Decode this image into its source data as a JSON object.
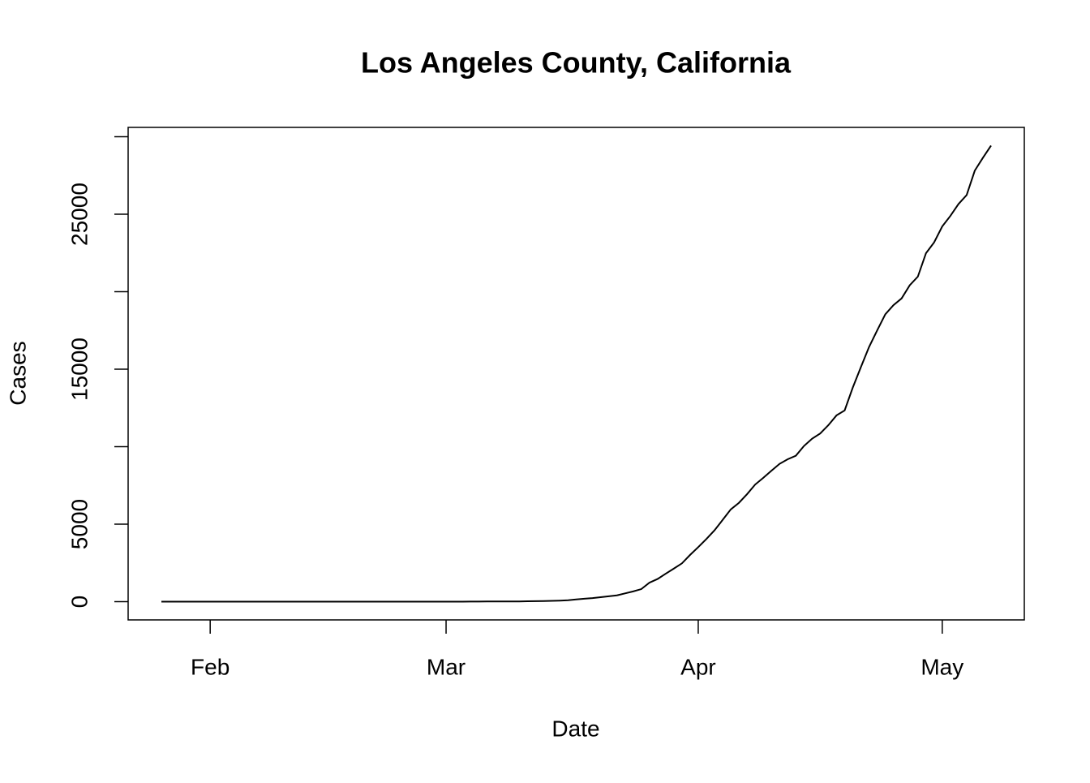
{
  "chart_data": {
    "type": "line",
    "title": "Los Angeles County, California",
    "x_label": "Date",
    "y_label": "Cases",
    "categories": [
      null,
      null,
      null,
      null,
      null,
      null,
      "Feb",
      null,
      null,
      null,
      null,
      null,
      null,
      null,
      null,
      null,
      null,
      null,
      null,
      null,
      null,
      null,
      null,
      null,
      null,
      null,
      null,
      null,
      null,
      null,
      null,
      null,
      null,
      null,
      null,
      "Mar",
      null,
      null,
      null,
      null,
      null,
      null,
      null,
      null,
      null,
      null,
      null,
      null,
      null,
      null,
      null,
      null,
      null,
      null,
      null,
      null,
      null,
      null,
      null,
      null,
      null,
      null,
      null,
      null,
      null,
      null,
      "Apr",
      null,
      null,
      null,
      null,
      null,
      null,
      null,
      null,
      null,
      null,
      null,
      null,
      null,
      null,
      null,
      null,
      null,
      null,
      null,
      null,
      null,
      null,
      null,
      null,
      null,
      null,
      null,
      null,
      null,
      "May",
      null,
      null,
      null,
      null,
      null,
      null
    ],
    "values": [
      1,
      1,
      1,
      1,
      1,
      1,
      1,
      1,
      1,
      1,
      1,
      1,
      1,
      1,
      1,
      1,
      1,
      1,
      1,
      1,
      1,
      1,
      1,
      1,
      1,
      1,
      1,
      1,
      1,
      1,
      1,
      1,
      1,
      1,
      1,
      1,
      1,
      1,
      7,
      11,
      13,
      14,
      14,
      14,
      17,
      27,
      32,
      40,
      53,
      69,
      94,
      144,
      190,
      231,
      292,
      351,
      407,
      536,
      662,
      812,
      1229,
      1465,
      1804,
      2136,
      2474,
      3019,
      3518,
      4045,
      4605,
      5277,
      5955,
      6377,
      6936,
      7559,
      7994,
      8453,
      8894,
      9192,
      9420,
      10047,
      10517,
      10854,
      11391,
      12021,
      12341,
      13816,
      15140,
      16435,
      17508,
      18545,
      19133,
      19567,
      20417,
      20976,
      22485,
      23182,
      24215,
      24894,
      25662,
      26238,
      27815,
      28644,
      29427
    ],
    "color": "#000000",
    "ylim": [
      -1176,
      30604
    ],
    "yticks": [
      0,
      5000,
      {
        "value": 10000,
        "label": null
      },
      15000,
      {
        "value": 20000,
        "label": null
      },
      25000,
      {
        "value": 30000,
        "label": null
      }
    ]
  }
}
